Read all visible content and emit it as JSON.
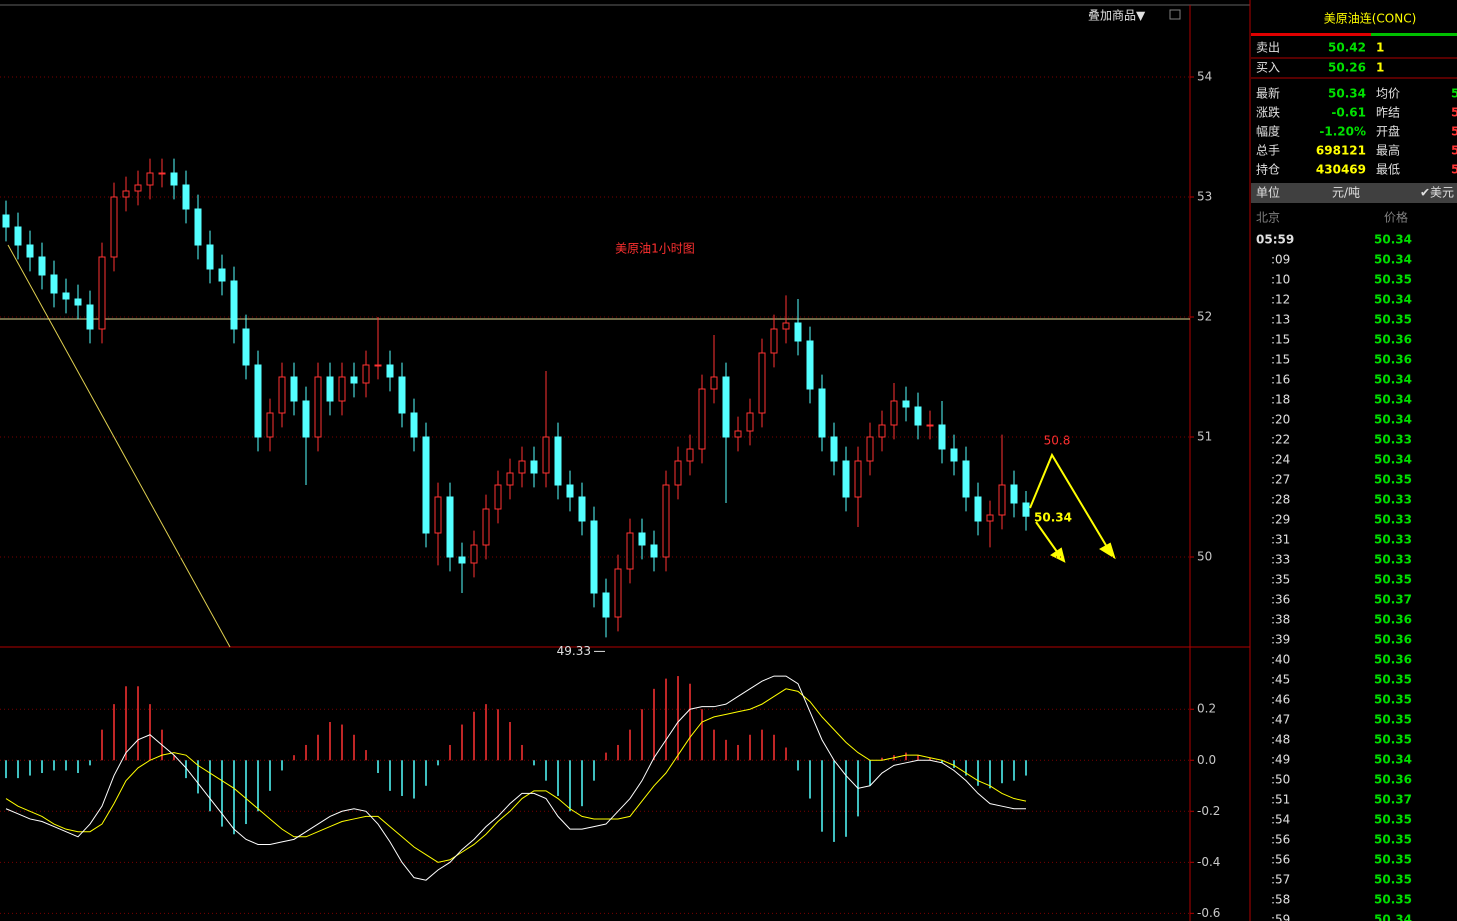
{
  "chart_data": [
    {
      "type": "candlestick",
      "title": "美原油1小时图",
      "annotation": "50.8",
      "up_color": "#ff3232",
      "down_color": "#54ffff",
      "grid": true,
      "ylim": [
        49.25,
        54.6
      ],
      "yticks": [
        50,
        51,
        52,
        53,
        54
      ],
      "open": [
        52.85,
        52.75,
        52.6,
        52.5,
        52.35,
        52.2,
        52.15,
        52.1,
        51.9,
        52.5,
        53.0,
        53.05,
        53.1,
        53.2,
        53.2,
        53.1,
        52.9,
        52.6,
        52.4,
        52.3,
        51.9,
        51.6,
        51.0,
        51.2,
        51.5,
        51.3,
        51.0,
        51.5,
        51.3,
        51.5,
        51.45,
        51.6,
        51.6,
        51.5,
        51.2,
        51.0,
        50.2,
        50.5,
        50.0,
        49.95,
        50.1,
        50.4,
        50.6,
        50.7,
        50.8,
        50.7,
        51.0,
        50.6,
        50.5,
        50.3,
        49.7,
        49.5,
        49.9,
        50.2,
        50.1,
        50.0,
        50.6,
        50.8,
        50.9,
        51.4,
        51.5,
        51.0,
        51.05,
        51.2,
        51.7,
        51.9,
        51.95,
        51.8,
        51.4,
        51.0,
        50.8,
        50.5,
        50.8,
        51.0,
        51.1,
        51.3,
        51.25,
        51.1,
        51.1,
        50.9,
        50.8,
        50.5,
        50.3,
        50.35,
        50.6,
        50.45
      ],
      "high": [
        52.97,
        52.87,
        52.72,
        52.62,
        52.47,
        52.32,
        52.27,
        52.22,
        52.62,
        53.12,
        53.17,
        53.22,
        53.32,
        53.32,
        53.32,
        53.22,
        53.02,
        52.72,
        52.52,
        52.42,
        52.02,
        51.72,
        51.32,
        51.62,
        51.62,
        51.42,
        51.62,
        51.62,
        51.62,
        51.62,
        51.72,
        52.0,
        51.72,
        51.62,
        51.32,
        51.12,
        50.62,
        50.62,
        50.12,
        50.22,
        50.52,
        50.72,
        50.82,
        50.92,
        50.92,
        51.55,
        51.12,
        50.72,
        50.62,
        50.42,
        49.82,
        50.02,
        50.32,
        50.32,
        50.22,
        50.72,
        50.92,
        51.02,
        51.52,
        51.85,
        51.62,
        51.17,
        51.32,
        51.82,
        52.02,
        52.18,
        52.15,
        51.92,
        51.52,
        51.12,
        50.92,
        50.92,
        51.12,
        51.22,
        51.45,
        51.42,
        51.37,
        51.22,
        51.3,
        51.02,
        50.92,
        50.62,
        50.47,
        51.02,
        50.72,
        50.55
      ],
      "low": [
        52.63,
        52.48,
        52.38,
        52.23,
        52.08,
        52.03,
        51.98,
        51.78,
        51.78,
        52.38,
        52.88,
        52.93,
        52.98,
        53.08,
        52.98,
        52.78,
        52.48,
        52.28,
        52.18,
        51.78,
        51.48,
        50.88,
        50.88,
        51.08,
        51.18,
        50.6,
        50.88,
        51.18,
        51.18,
        51.33,
        51.33,
        51.48,
        51.38,
        51.08,
        50.88,
        50.08,
        49.93,
        49.88,
        49.7,
        49.83,
        49.98,
        50.28,
        50.48,
        50.58,
        50.58,
        50.58,
        50.48,
        50.38,
        50.18,
        49.58,
        49.33,
        49.38,
        49.78,
        49.98,
        49.88,
        49.88,
        50.48,
        50.68,
        50.78,
        51.28,
        50.45,
        50.88,
        50.93,
        51.08,
        51.58,
        51.78,
        51.68,
        51.28,
        50.88,
        50.68,
        50.38,
        50.25,
        50.68,
        50.88,
        50.98,
        51.13,
        50.98,
        50.98,
        50.78,
        50.68,
        50.38,
        50.18,
        50.08,
        50.23,
        50.33,
        50.22
      ],
      "close": [
        52.75,
        52.6,
        52.5,
        52.35,
        52.2,
        52.15,
        52.1,
        51.9,
        52.5,
        53.0,
        53.05,
        53.1,
        53.2,
        53.2,
        53.1,
        52.9,
        52.6,
        52.4,
        52.3,
        51.9,
        51.6,
        51.0,
        51.2,
        51.5,
        51.3,
        51.0,
        51.5,
        51.3,
        51.5,
        51.45,
        51.6,
        51.6,
        51.5,
        51.2,
        51.0,
        50.2,
        50.5,
        50.0,
        49.95,
        50.1,
        50.4,
        50.6,
        50.7,
        50.8,
        50.7,
        51.0,
        50.6,
        50.5,
        50.3,
        49.7,
        49.5,
        49.9,
        50.2,
        50.1,
        50.0,
        50.6,
        50.8,
        50.9,
        51.4,
        51.5,
        51.0,
        51.05,
        51.2,
        51.7,
        51.9,
        51.95,
        51.8,
        51.4,
        51.0,
        50.8,
        50.5,
        50.8,
        51.0,
        51.1,
        51.3,
        51.25,
        51.1,
        51.1,
        50.9,
        50.8,
        50.5,
        50.3,
        50.35,
        50.6,
        50.45,
        50.34
      ]
    },
    {
      "type": "macd",
      "grid": true,
      "ylim": [
        -0.63,
        0.44
      ],
      "yticks": [
        0.2,
        {
          "value": 0,
          "label": "0.0"
        },
        -0.2,
        -0.4,
        -0.6
      ],
      "pos_color": "#ff3232",
      "neg_color": "#54ffff",
      "dif_color": "#ffffff",
      "dea_color": "#ffff00",
      "histogram": [
        -0.07,
        -0.07,
        -0.06,
        -0.05,
        -0.04,
        -0.04,
        -0.05,
        -0.02,
        0.12,
        0.22,
        0.29,
        0.29,
        0.22,
        0.12,
        0.02,
        -0.07,
        -0.13,
        -0.2,
        -0.26,
        -0.29,
        -0.25,
        -0.2,
        -0.12,
        -0.04,
        0.02,
        0.06,
        0.1,
        0.15,
        0.14,
        0.1,
        0.04,
        -0.05,
        -0.12,
        -0.14,
        -0.15,
        -0.1,
        -0.02,
        0.06,
        0.14,
        0.19,
        0.22,
        0.2,
        0.15,
        0.06,
        -0.02,
        -0.08,
        -0.14,
        -0.2,
        -0.18,
        -0.08,
        0.03,
        0.06,
        0.12,
        0.2,
        0.28,
        0.32,
        0.33,
        0.3,
        0.2,
        0.12,
        0.08,
        0.06,
        0.1,
        0.12,
        0.1,
        0.05,
        -0.04,
        -0.15,
        -0.28,
        -0.32,
        -0.3,
        -0.22,
        -0.1,
        0.01,
        0.02,
        0.03,
        0.02,
        0.01,
        -0.01,
        -0.03,
        -0.06,
        -0.1,
        -0.11,
        -0.09,
        -0.08,
        -0.06
      ],
      "dif": [
        -0.19,
        -0.21,
        -0.23,
        -0.24,
        -0.26,
        -0.28,
        -0.3,
        -0.25,
        -0.18,
        -0.06,
        0.03,
        0.08,
        0.1,
        0.06,
        0.02,
        -0.03,
        -0.09,
        -0.15,
        -0.21,
        -0.27,
        -0.31,
        -0.33,
        -0.33,
        -0.32,
        -0.31,
        -0.28,
        -0.25,
        -0.22,
        -0.2,
        -0.19,
        -0.2,
        -0.25,
        -0.32,
        -0.4,
        -0.46,
        -0.47,
        -0.43,
        -0.4,
        -0.35,
        -0.31,
        -0.26,
        -0.22,
        -0.17,
        -0.13,
        -0.13,
        -0.15,
        -0.22,
        -0.27,
        -0.27,
        -0.26,
        -0.25,
        -0.2,
        -0.15,
        -0.08,
        0.01,
        0.08,
        0.15,
        0.2,
        0.21,
        0.21,
        0.22,
        0.25,
        0.28,
        0.31,
        0.33,
        0.33,
        0.3,
        0.19,
        0.08,
        0.0,
        -0.06,
        -0.11,
        -0.1,
        -0.05,
        -0.02,
        -0.01,
        0.0,
        0.0,
        -0.01,
        -0.04,
        -0.08,
        -0.13,
        -0.17,
        -0.18,
        -0.19,
        -0.19
      ],
      "dea": [
        -0.15,
        -0.18,
        -0.2,
        -0.22,
        -0.25,
        -0.27,
        -0.28,
        -0.28,
        -0.25,
        -0.17,
        -0.08,
        -0.03,
        0.0,
        0.02,
        0.03,
        0.02,
        -0.02,
        -0.05,
        -0.08,
        -0.11,
        -0.15,
        -0.19,
        -0.23,
        -0.27,
        -0.3,
        -0.3,
        -0.28,
        -0.26,
        -0.24,
        -0.23,
        -0.22,
        -0.22,
        -0.26,
        -0.3,
        -0.34,
        -0.37,
        -0.4,
        -0.39,
        -0.36,
        -0.33,
        -0.29,
        -0.24,
        -0.2,
        -0.15,
        -0.12,
        -0.12,
        -0.15,
        -0.19,
        -0.22,
        -0.23,
        -0.23,
        -0.23,
        -0.22,
        -0.16,
        -0.1,
        -0.05,
        0.02,
        0.09,
        0.15,
        0.17,
        0.18,
        0.19,
        0.2,
        0.22,
        0.25,
        0.28,
        0.27,
        0.23,
        0.17,
        0.12,
        0.07,
        0.03,
        0.0,
        0.0,
        0.01,
        0.02,
        0.02,
        0.01,
        0.0,
        -0.02,
        -0.05,
        -0.08,
        -0.1,
        -0.13,
        -0.15,
        -0.16
      ]
    }
  ],
  "overlay_button": "叠加商品▼",
  "panel": {
    "title": "美原油连(CONC)",
    "quotes": [
      [
        "卖出",
        "50.42",
        "1"
      ],
      [
        "买入",
        "50.26",
        "1"
      ]
    ],
    "stats": [
      [
        "最新",
        "50.34",
        "均价",
        "5"
      ],
      [
        "涨跌",
        "-0.61",
        "昨结",
        "5"
      ],
      [
        "幅度",
        "-1.20%",
        "开盘",
        "5"
      ],
      [
        "总手",
        "698121",
        "最高",
        "5"
      ],
      [
        "持仓",
        "430469",
        "最低",
        "5"
      ]
    ],
    "unit": [
      "单位",
      "元/吨",
      "✔美元"
    ],
    "ticks_header": [
      "北京",
      "价格"
    ],
    "ticks": [
      [
        "05:59",
        "50.34"
      ],
      [
        ":09",
        "50.34"
      ],
      [
        ":10",
        "50.35"
      ],
      [
        ":12",
        "50.34"
      ],
      [
        ":13",
        "50.35"
      ],
      [
        ":15",
        "50.36"
      ],
      [
        ":15",
        "50.36"
      ],
      [
        ":16",
        "50.34"
      ],
      [
        ":18",
        "50.34"
      ],
      [
        ":20",
        "50.34"
      ],
      [
        ":22",
        "50.33"
      ],
      [
        ":24",
        "50.34"
      ],
      [
        ":27",
        "50.35"
      ],
      [
        ":28",
        "50.33"
      ],
      [
        ":29",
        "50.33"
      ],
      [
        ":31",
        "50.33"
      ],
      [
        ":33",
        "50.33"
      ],
      [
        ":35",
        "50.35"
      ],
      [
        ":36",
        "50.37"
      ],
      [
        ":38",
        "50.36"
      ],
      [
        ":39",
        "50.36"
      ],
      [
        ":40",
        "50.36"
      ],
      [
        ":45",
        "50.35"
      ],
      [
        ":46",
        "50.35"
      ],
      [
        ":47",
        "50.35"
      ],
      [
        ":48",
        "50.35"
      ],
      [
        ":49",
        "50.34"
      ],
      [
        ":50",
        "50.36"
      ],
      [
        ":51",
        "50.37"
      ],
      [
        ":54",
        "50.35"
      ],
      [
        ":56",
        "50.35"
      ],
      [
        ":56",
        "50.35"
      ],
      [
        ":57",
        "50.35"
      ],
      [
        ":58",
        "50.35"
      ],
      [
        ":59",
        "50.34"
      ]
    ]
  }
}
